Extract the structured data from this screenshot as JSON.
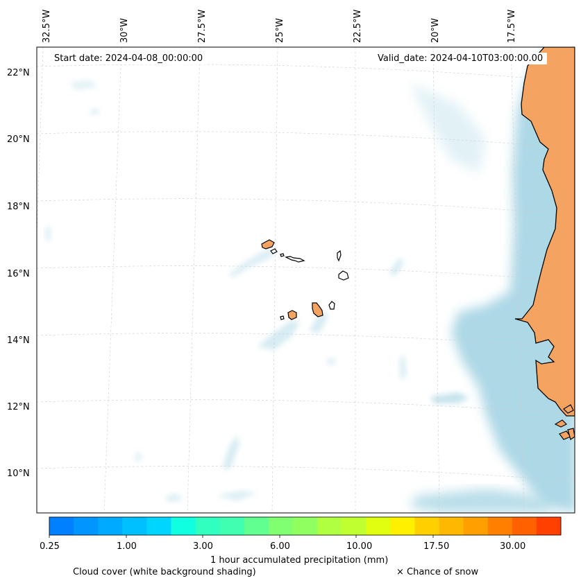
{
  "map": {
    "start_date": "Start date: 2024-04-08_00:00:00",
    "valid_date": "Valid_date: 2024-04-10T03:00:00.00",
    "lon_labels": [
      "32.5°W",
      "30°W",
      "27.5°W",
      "25°W",
      "22.5°W",
      "20°W",
      "17.5°W"
    ],
    "lat_labels": [
      "22°N",
      "20°N",
      "18°N",
      "16°N",
      "14°N",
      "12°N",
      "10°N"
    ],
    "colors": {
      "land": "#f4a460",
      "cloud": "#add8e6",
      "coast": "#000000",
      "grid": "#cccccc"
    }
  },
  "colorbar": {
    "colors": [
      "#0080ff",
      "#0095ff",
      "#00aaff",
      "#00c0ff",
      "#00d5ff",
      "#10ffe0",
      "#30ffc0",
      "#40ffb0",
      "#60ff90",
      "#80ff70",
      "#90ff60",
      "#b0ff40",
      "#c0ff30",
      "#e0ff10",
      "#fff000",
      "#ffd000",
      "#ffb800",
      "#ffa000",
      "#ff8000",
      "#ff6000",
      "#ff4000"
    ],
    "tick_labels": [
      "0.25",
      "1.00",
      "3.00",
      "6.00",
      "10.00",
      "17.50",
      "30.00"
    ],
    "label": "1 hour accumulated precipitation (mm)"
  },
  "legend": {
    "cloud_cover": "Cloud cover (white background shading)",
    "snow": "× Chance of snow"
  }
}
